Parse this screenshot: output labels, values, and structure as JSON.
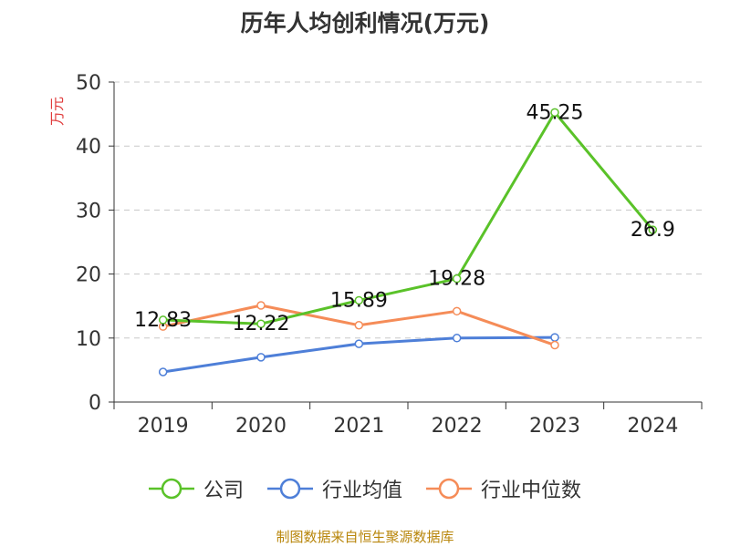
{
  "header": {
    "title": "历年人均创利情况(万元)"
  },
  "chart_data": {
    "type": "line",
    "title": "历年人均创利情况(万元)",
    "ylabel": "万元",
    "xlabel": "",
    "categories": [
      "2019",
      "2020",
      "2021",
      "2022",
      "2023",
      "2024"
    ],
    "ylim": [
      0,
      50
    ],
    "yticks": [
      0,
      10,
      20,
      30,
      40,
      50
    ],
    "grid": true,
    "legend_position": "bottom",
    "series": [
      {
        "name": "公司",
        "color": "#5ac229",
        "values": [
          12.83,
          12.22,
          15.89,
          19.28,
          45.25,
          26.9
        ],
        "labels": [
          "12.83",
          "12.22",
          "15.89",
          "19.28",
          "45.25",
          "26.9"
        ]
      },
      {
        "name": "行业均值",
        "color": "#4e7fd8",
        "values": [
          4.7,
          7.0,
          9.1,
          10.0,
          10.1,
          null
        ]
      },
      {
        "name": "行业中位数",
        "color": "#f58c58",
        "values": [
          11.8,
          15.1,
          12.0,
          14.2,
          8.9,
          null
        ]
      }
    ]
  },
  "footer": {
    "source": "制图数据来自恒生聚源数据库"
  }
}
